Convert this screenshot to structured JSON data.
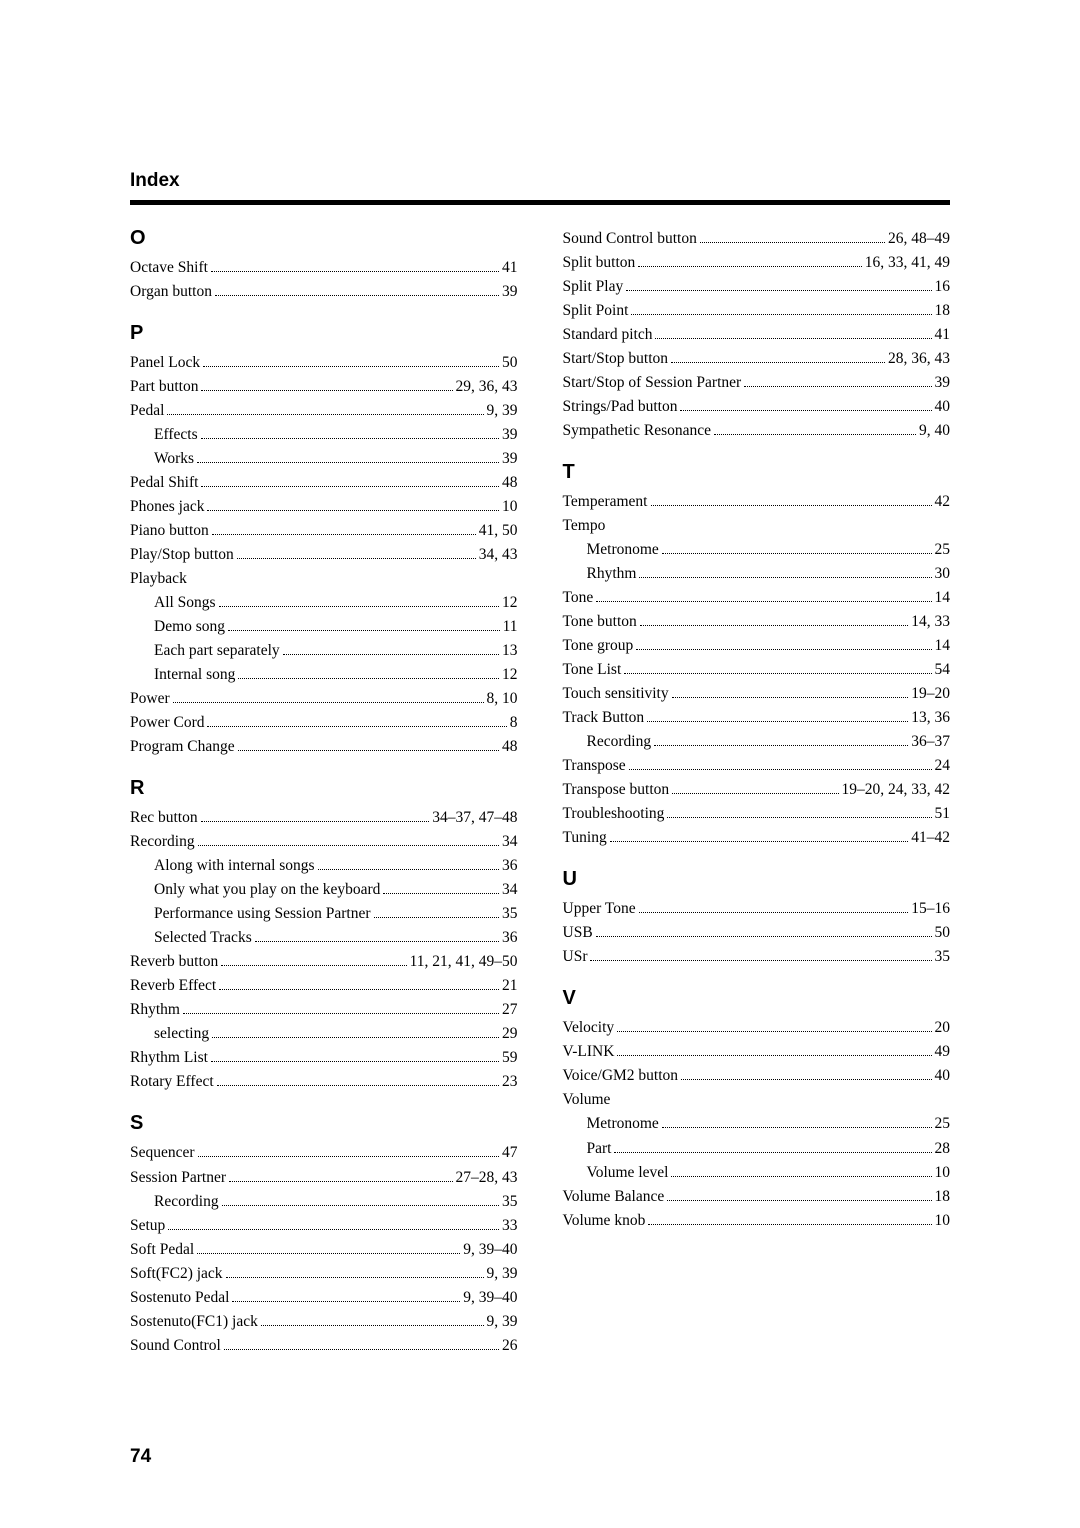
{
  "header": "Index",
  "page_number": "74",
  "left": [
    {
      "type": "letter",
      "text": "O",
      "first": true
    },
    {
      "type": "entry",
      "label": "Octave Shift",
      "page": "41",
      "indent": 0
    },
    {
      "type": "entry",
      "label": "Organ button",
      "page": "39",
      "indent": 0
    },
    {
      "type": "letter",
      "text": "P"
    },
    {
      "type": "entry",
      "label": "Panel Lock",
      "page": "50",
      "indent": 0
    },
    {
      "type": "entry",
      "label": "Part button",
      "page": "29, 36, 43",
      "indent": 0
    },
    {
      "type": "entry",
      "label": "Pedal",
      "page": "9, 39",
      "indent": 0
    },
    {
      "type": "entry",
      "label": "Effects",
      "page": "39",
      "indent": 1
    },
    {
      "type": "entry",
      "label": "Works",
      "page": "39",
      "indent": 1
    },
    {
      "type": "entry",
      "label": "Pedal Shift",
      "page": "48",
      "indent": 0
    },
    {
      "type": "entry",
      "label": "Phones jack",
      "page": "10",
      "indent": 0
    },
    {
      "type": "entry",
      "label": "Piano button",
      "page": "41, 50",
      "indent": 0
    },
    {
      "type": "entry",
      "label": "Play/Stop button",
      "page": "34, 43",
      "indent": 0
    },
    {
      "type": "entry",
      "label": "Playback",
      "page": "",
      "indent": 0,
      "nodots": true
    },
    {
      "type": "entry",
      "label": "All Songs",
      "page": "12",
      "indent": 1
    },
    {
      "type": "entry",
      "label": "Demo song",
      "page": "11",
      "indent": 1
    },
    {
      "type": "entry",
      "label": "Each part separately",
      "page": "13",
      "indent": 1
    },
    {
      "type": "entry",
      "label": "Internal song",
      "page": "12",
      "indent": 1
    },
    {
      "type": "entry",
      "label": "Power",
      "page": "8, 10",
      "indent": 0
    },
    {
      "type": "entry",
      "label": "Power Cord",
      "page": "8",
      "indent": 0
    },
    {
      "type": "entry",
      "label": "Program Change",
      "page": "48",
      "indent": 0
    },
    {
      "type": "letter",
      "text": "R"
    },
    {
      "type": "entry",
      "label": "Rec button",
      "page": "34–37, 47–48",
      "indent": 0
    },
    {
      "type": "entry",
      "label": "Recording",
      "page": "34",
      "indent": 0
    },
    {
      "type": "entry",
      "label": "Along with internal songs",
      "page": "36",
      "indent": 1
    },
    {
      "type": "entry",
      "label": "Only what you play on the keyboard",
      "page": "34",
      "indent": 1
    },
    {
      "type": "entry",
      "label": "Performance using Session Partner",
      "page": "35",
      "indent": 1
    },
    {
      "type": "entry",
      "label": "Selected Tracks",
      "page": "36",
      "indent": 1
    },
    {
      "type": "entry",
      "label": "Reverb button",
      "page": "11, 21, 41, 49–50",
      "indent": 0
    },
    {
      "type": "entry",
      "label": "Reverb Effect",
      "page": "21",
      "indent": 0
    },
    {
      "type": "entry",
      "label": "Rhythm",
      "page": "27",
      "indent": 0
    },
    {
      "type": "entry",
      "label": "selecting",
      "page": "29",
      "indent": 1
    },
    {
      "type": "entry",
      "label": "Rhythm List",
      "page": "59",
      "indent": 0
    },
    {
      "type": "entry",
      "label": "Rotary Effect",
      "page": "23",
      "indent": 0
    },
    {
      "type": "letter",
      "text": "S"
    },
    {
      "type": "entry",
      "label": "Sequencer",
      "page": "47",
      "indent": 0
    },
    {
      "type": "entry",
      "label": "Session Partner",
      "page": "27–28, 43",
      "indent": 0
    },
    {
      "type": "entry",
      "label": "Recording",
      "page": "35",
      "indent": 1
    },
    {
      "type": "entry",
      "label": "Setup",
      "page": "33",
      "indent": 0
    },
    {
      "type": "entry",
      "label": "Soft Pedal",
      "page": "9, 39–40",
      "indent": 0
    },
    {
      "type": "entry",
      "label": "Soft(FC2) jack",
      "page": "9, 39",
      "indent": 0
    },
    {
      "type": "entry",
      "label": "Sostenuto Pedal",
      "page": "9, 39–40",
      "indent": 0
    },
    {
      "type": "entry",
      "label": "Sostenuto(FC1) jack",
      "page": "9, 39",
      "indent": 0
    },
    {
      "type": "entry",
      "label": "Sound Control",
      "page": "26",
      "indent": 0
    }
  ],
  "right": [
    {
      "type": "entry",
      "label": "Sound Control button",
      "page": "26, 48–49",
      "indent": 0
    },
    {
      "type": "entry",
      "label": "Split button",
      "page": "16, 33, 41, 49",
      "indent": 0
    },
    {
      "type": "entry",
      "label": "Split Play",
      "page": "16",
      "indent": 0
    },
    {
      "type": "entry",
      "label": "Split Point",
      "page": "18",
      "indent": 0
    },
    {
      "type": "entry",
      "label": "Standard pitch",
      "page": "41",
      "indent": 0
    },
    {
      "type": "entry",
      "label": "Start/Stop button",
      "page": "28, 36, 43",
      "indent": 0
    },
    {
      "type": "entry",
      "label": "Start/Stop of Session Partner",
      "page": "39",
      "indent": 0
    },
    {
      "type": "entry",
      "label": "Strings/Pad button",
      "page": "40",
      "indent": 0
    },
    {
      "type": "entry",
      "label": "Sympathetic Resonance",
      "page": "9, 40",
      "indent": 0
    },
    {
      "type": "letter",
      "text": "T"
    },
    {
      "type": "entry",
      "label": "Temperament",
      "page": "42",
      "indent": 0
    },
    {
      "type": "entry",
      "label": "Tempo",
      "page": "",
      "indent": 0,
      "nodots": true
    },
    {
      "type": "entry",
      "label": "Metronome",
      "page": "25",
      "indent": 1
    },
    {
      "type": "entry",
      "label": "Rhythm",
      "page": "30",
      "indent": 1
    },
    {
      "type": "entry",
      "label": "Tone",
      "page": "14",
      "indent": 0
    },
    {
      "type": "entry",
      "label": "Tone button",
      "page": "14, 33",
      "indent": 0
    },
    {
      "type": "entry",
      "label": "Tone group",
      "page": "14",
      "indent": 0
    },
    {
      "type": "entry",
      "label": "Tone List",
      "page": "54",
      "indent": 0
    },
    {
      "type": "entry",
      "label": "Touch sensitivity",
      "page": "19–20",
      "indent": 0
    },
    {
      "type": "entry",
      "label": "Track Button",
      "page": "13, 36",
      "indent": 0
    },
    {
      "type": "entry",
      "label": "Recording",
      "page": "36–37",
      "indent": 1
    },
    {
      "type": "entry",
      "label": "Transpose",
      "page": "24",
      "indent": 0
    },
    {
      "type": "entry",
      "label": "Transpose button",
      "page": "19–20, 24, 33, 42",
      "indent": 0
    },
    {
      "type": "entry",
      "label": "Troubleshooting",
      "page": "51",
      "indent": 0
    },
    {
      "type": "entry",
      "label": "Tuning",
      "page": "41–42",
      "indent": 0
    },
    {
      "type": "letter",
      "text": "U"
    },
    {
      "type": "entry",
      "label": "Upper Tone",
      "page": "15–16",
      "indent": 0
    },
    {
      "type": "entry",
      "label": "USB",
      "page": "50",
      "indent": 0
    },
    {
      "type": "entry",
      "label": "USr",
      "page": "35",
      "indent": 0
    },
    {
      "type": "letter",
      "text": "V"
    },
    {
      "type": "entry",
      "label": "Velocity",
      "page": "20",
      "indent": 0
    },
    {
      "type": "entry",
      "label": "V-LINK",
      "page": "49",
      "indent": 0
    },
    {
      "type": "entry",
      "label": "Voice/GM2 button",
      "page": "40",
      "indent": 0
    },
    {
      "type": "entry",
      "label": "Volume",
      "page": "",
      "indent": 0,
      "nodots": true
    },
    {
      "type": "entry",
      "label": "Metronome",
      "page": "25",
      "indent": 1
    },
    {
      "type": "entry",
      "label": "Part",
      "page": "28",
      "indent": 1
    },
    {
      "type": "entry",
      "label": "Volume level",
      "page": "10",
      "indent": 1
    },
    {
      "type": "entry",
      "label": "Volume Balance",
      "page": "18",
      "indent": 0
    },
    {
      "type": "entry",
      "label": "Volume knob",
      "page": "10",
      "indent": 0
    }
  ]
}
